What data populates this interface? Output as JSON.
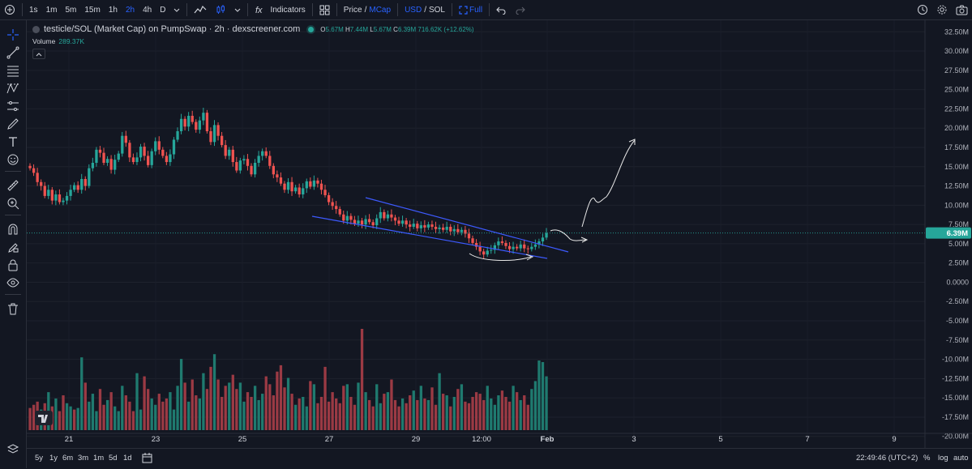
{
  "toolbar": {
    "intervals": [
      "1s",
      "1m",
      "5m",
      "15m",
      "1h",
      "2h",
      "4h",
      "D"
    ],
    "active_interval": "2h",
    "indicators_label": "Indicators",
    "price_label": "Price",
    "mcap_label": "MCap",
    "usd_label": "USD",
    "sol_label": "SOL",
    "full_label": "Full",
    "slash": "/"
  },
  "legend": {
    "symbol": "testicle/SOL (Market Cap) on PumpSwap · 2h · dexscreener.com",
    "o_key": "O",
    "o_val": "5.67M",
    "h_key": "H",
    "h_val": "7.44M",
    "l_key": "L",
    "l_val": "5.67M",
    "c_key": "C",
    "c_val": "6.39M",
    "change": "716.62K (+12.62%)",
    "volume_label": "Volume",
    "volume_value": "289.37K"
  },
  "colors": {
    "up": "#26a69a",
    "down": "#ef5350",
    "vol_up": "#1f7a6f",
    "vol_down": "#9b3a44",
    "trendline": "#3d5afe",
    "annotation": "#e8e8e8",
    "background": "#131722"
  },
  "chart_data": {
    "type": "candlestick",
    "title": "testicle/SOL (Market Cap) on PumpSwap · 2h · dexscreener.com",
    "y_unit": "M",
    "ylim": [
      -21.5,
      34.0
    ],
    "y_ticks": [
      32.5,
      30.0,
      27.5,
      25.0,
      22.5,
      20.0,
      17.5,
      15.0,
      12.5,
      10.0,
      7.5,
      5.0,
      2.5,
      0.0,
      -2.5,
      -5.0,
      -7.5,
      -10.0,
      -12.5,
      -15.0,
      -17.5,
      -20.0
    ],
    "y_tick_labels": [
      "32.50M",
      "30.00M",
      "27.50M",
      "25.00M",
      "22.50M",
      "20.00M",
      "17.50M",
      "15.00M",
      "12.50M",
      "10.00M",
      "7.50M",
      "5.00M",
      "2.50M",
      "0.0000",
      "-2.50M",
      "-5.00M",
      "-7.50M",
      "-10.00M",
      "-12.50M",
      "-15.00M",
      "-17.50M",
      "-20.00M"
    ],
    "x_tick_labels": [
      "21",
      "23",
      "25",
      "27",
      "29",
      "12:00",
      "Feb",
      "3",
      "5",
      "7",
      "9"
    ],
    "x_tick_bold": [
      false,
      false,
      false,
      false,
      false,
      false,
      true,
      false,
      false,
      false,
      false
    ],
    "last_price_label": "6.39M",
    "last_price": 6.39,
    "candles_close": [
      14.8,
      14.2,
      13.0,
      12.5,
      11.2,
      12.0,
      10.6,
      11.4,
      10.4,
      10.6,
      11.2,
      12.0,
      12.6,
      12.0,
      13.4,
      12.5,
      14.8,
      15.5,
      17.2,
      16.8,
      15.5,
      16.0,
      14.6,
      15.9,
      16.7,
      19.0,
      18.1,
      16.2,
      15.6,
      16.2,
      17.6,
      16.4,
      15.2,
      17.0,
      18.3,
      17.2,
      16.4,
      15.6,
      16.6,
      18.5,
      19.6,
      21.2,
      20.2,
      21.6,
      20.8,
      19.8,
      21.0,
      22.0,
      19.6,
      18.2,
      20.4,
      19.0,
      17.8,
      16.4,
      17.2,
      15.6,
      14.5,
      15.8,
      16.0,
      15.1,
      14.0,
      15.5,
      16.4,
      17.0,
      16.4,
      15.1,
      14.0,
      13.6,
      12.8,
      12.0,
      13.0,
      11.8,
      12.3,
      11.4,
      12.2,
      13.1,
      12.4,
      13.2,
      12.8,
      12.0,
      11.3,
      10.4,
      9.9,
      9.5,
      8.8,
      8.0,
      8.6,
      8.1,
      7.6,
      8.0,
      7.5,
      8.2,
      7.8,
      7.4,
      8.3,
      9.1,
      8.3,
      8.8,
      8.4,
      8.0,
      7.6,
      8.0,
      7.5,
      7.2,
      7.6,
      7.0,
      7.4,
      7.1,
      7.5,
      7.2,
      6.9,
      7.1,
      6.8,
      7.2,
      6.6,
      6.9,
      6.5,
      6.8,
      6.3,
      5.7,
      5.1,
      4.6,
      4.0,
      3.6,
      4.1,
      4.2,
      4.8,
      5.3,
      5.1,
      4.7,
      4.3,
      4.6,
      4.4,
      4.9,
      4.4,
      4.3,
      4.6,
      4.9,
      5.3,
      5.8,
      6.39
    ],
    "event_label_1": "Price",
    "volume_values": [
      14,
      16,
      18,
      13,
      17,
      24,
      15,
      20,
      12,
      22,
      17,
      15,
      13,
      14,
      46,
      30,
      18,
      23,
      12,
      26,
      16,
      19,
      24,
      15,
      12,
      28,
      22,
      18,
      12,
      36,
      13,
      34,
      26,
      20,
      16,
      23,
      18,
      20,
      24,
      13,
      28,
      45,
      30,
      18,
      32,
      22,
      20,
      36,
      26,
      40,
      48,
      32,
      21,
      28,
      30,
      35,
      26,
      30,
      18,
      24,
      21,
      28,
      19,
      23,
      34,
      29,
      22,
      37,
      41,
      27,
      33,
      23,
      16,
      20,
      21,
      15,
      31,
      29,
      17,
      21,
      40,
      18,
      24,
      20,
      17,
      28,
      29,
      21,
      16,
      30,
      64,
      24,
      19,
      15,
      29,
      17,
      23,
      24,
      32,
      19,
      15,
      20,
      17,
      22,
      25,
      19,
      28,
      20,
      19,
      27,
      16,
      36,
      23,
      22,
      15,
      21,
      26,
      29,
      18,
      17,
      21,
      24,
      23,
      19,
      28,
      20,
      16,
      22,
      25,
      21,
      18,
      28,
      24,
      19,
      22,
      16,
      26,
      31,
      44,
      43,
      34
    ],
    "volume_up_flags": [
      0,
      0,
      0,
      1,
      0,
      1,
      0,
      1,
      0,
      0,
      1,
      1,
      0,
      1,
      1,
      0,
      1,
      1,
      1,
      0,
      0,
      1,
      0,
      1,
      1,
      1,
      0,
      0,
      0,
      1,
      1,
      0,
      0,
      1,
      1,
      0,
      0,
      0,
      1,
      1,
      1,
      1,
      0,
      1,
      0,
      0,
      1,
      1,
      0,
      0,
      1,
      0,
      0,
      0,
      1,
      0,
      0,
      1,
      1,
      0,
      0,
      1,
      1,
      1,
      0,
      0,
      0,
      0,
      0,
      0,
      1,
      0,
      1,
      0,
      1,
      1,
      0,
      1,
      0,
      0,
      0,
      0,
      0,
      0,
      0,
      0,
      1,
      0,
      0,
      1,
      0,
      1,
      0,
      0,
      1,
      1,
      0,
      1,
      0,
      0,
      0,
      1,
      0,
      0,
      1,
      0,
      1,
      0,
      1,
      0,
      0,
      1,
      0,
      1,
      0,
      1,
      0,
      1,
      0,
      0,
      0,
      0,
      0,
      0,
      1,
      1,
      1,
      1,
      0,
      0,
      0,
      1,
      0,
      1,
      0,
      0,
      1,
      1,
      1,
      1,
      1
    ],
    "volume_max": 64
  },
  "bottom": {
    "ranges": [
      "5y",
      "1y",
      "6m",
      "3m",
      "1m",
      "5d",
      "1d"
    ],
    "clock": "22:49:46 (UTC+2)",
    "percent_label": "%",
    "log_label": "log",
    "auto_label": "auto"
  }
}
